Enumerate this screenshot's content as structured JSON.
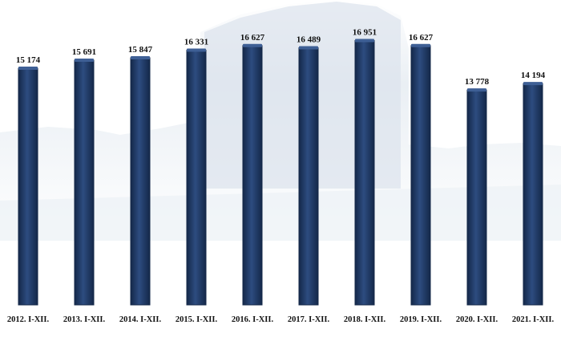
{
  "chart_data": {
    "type": "bar",
    "categories": [
      "2012. I-XII.",
      "2013. I-XII.",
      "2014. I-XII.",
      "2015. I-XII.",
      "2016. I-XII.",
      "2017. I-XII.",
      "2018. I-XII.",
      "2019. I-XII.",
      "2020. I-XII.",
      "2021. I-XII."
    ],
    "values": [
      15174,
      15691,
      15847,
      16331,
      16627,
      16489,
      16951,
      16627,
      13778,
      14194
    ],
    "value_labels": [
      "15 174",
      "15 691",
      "15 847",
      "16 331",
      "16 627",
      "16 489",
      "16 951",
      "16 627",
      "13 778",
      "14 194"
    ],
    "title": "",
    "xlabel": "",
    "ylabel": "",
    "ylim": [
      0,
      17800
    ],
    "grid": false,
    "legend": "none",
    "colors": {
      "bar": "#1f3a68",
      "bar_dark": "#142849",
      "bar_light": "#3e5f95",
      "background_tint": "#dde5ee",
      "text": "#111111"
    }
  }
}
